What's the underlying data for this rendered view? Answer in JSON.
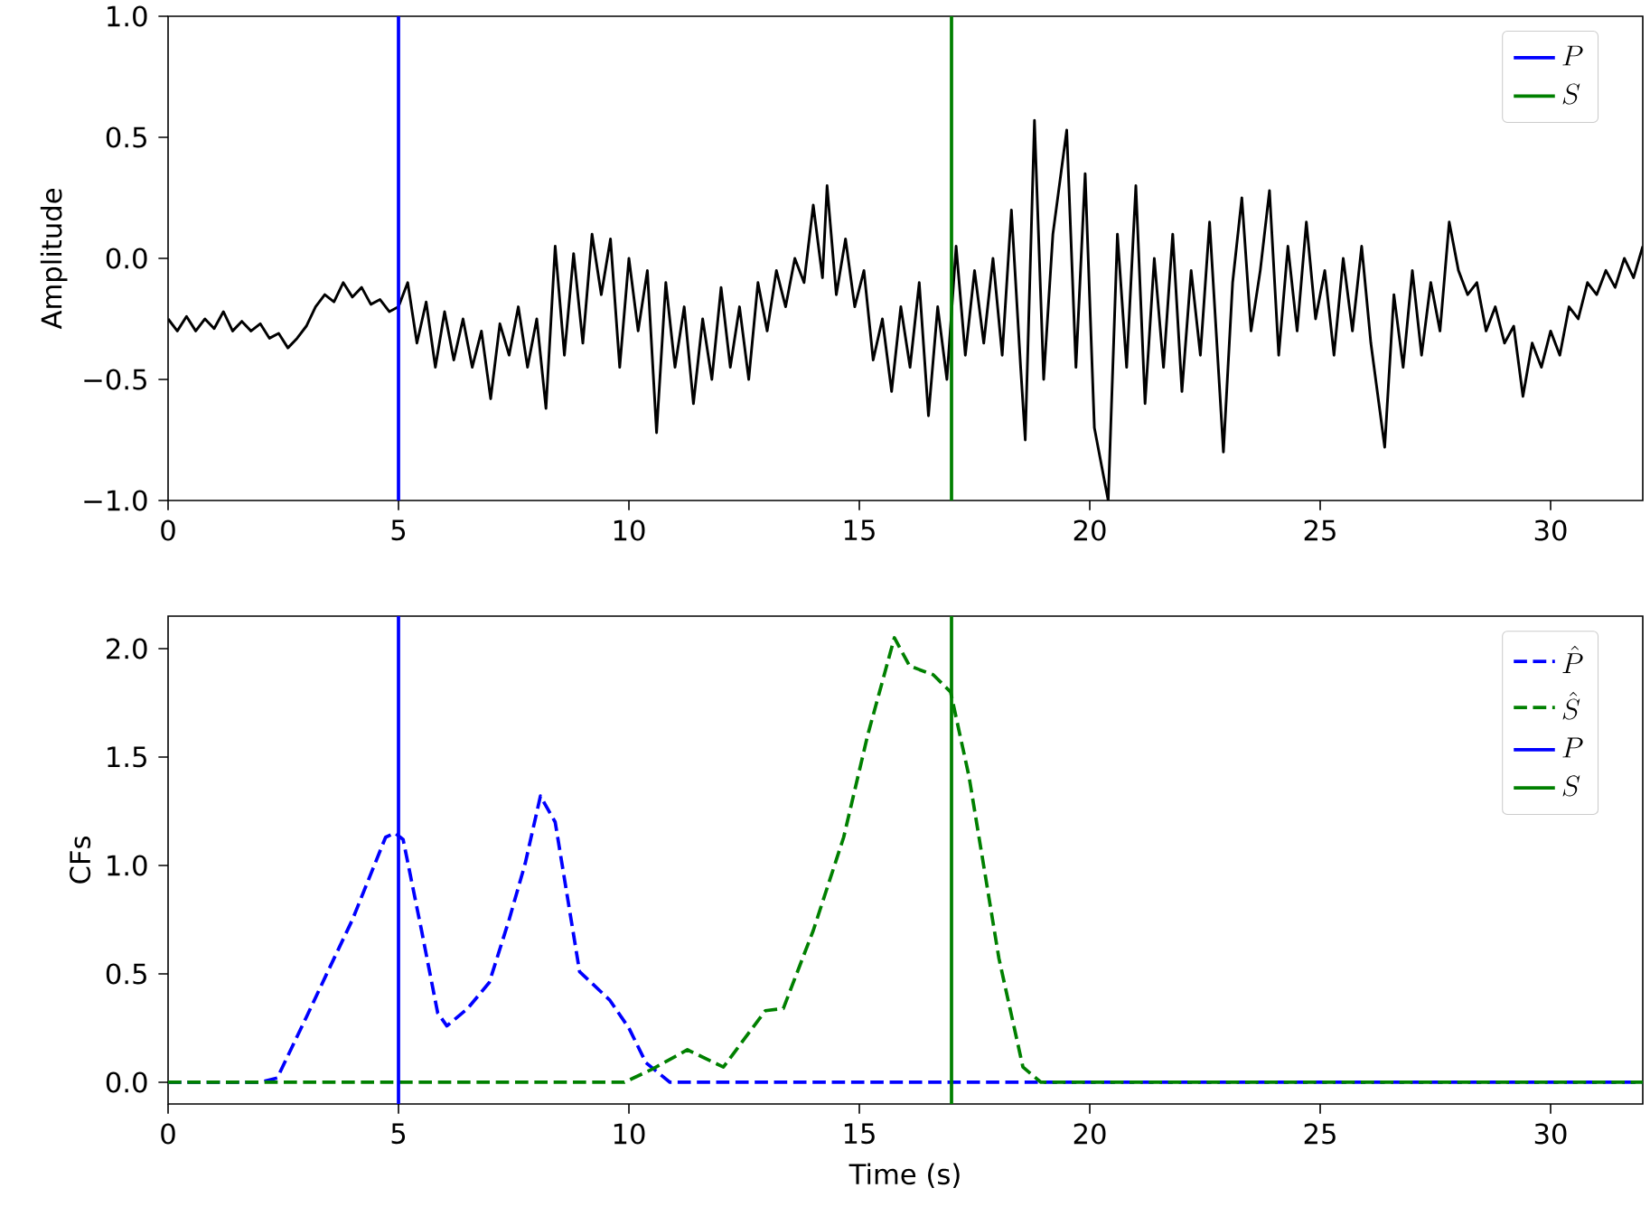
{
  "chart_data": [
    {
      "type": "line",
      "ylabel": "Amplitude",
      "xlim": [
        0,
        32
      ],
      "ylim": [
        -1,
        1
      ],
      "legend": "top right",
      "xticks": [
        0,
        5,
        10,
        15,
        20,
        25,
        30
      ],
      "yticks": [
        {
          "value": -1,
          "label": "−1.0"
        },
        {
          "value": -0.5,
          "label": "−0.5"
        },
        {
          "value": 0,
          "label": "0.0"
        },
        {
          "value": 0.5,
          "label": "0.5"
        },
        {
          "value": 1,
          "label": "1.0"
        }
      ],
      "series": [
        {
          "color": "#000000",
          "x": [
            0.0,
            0.2,
            0.4,
            0.6,
            0.8,
            1.0,
            1.2,
            1.4,
            1.6,
            1.8,
            2.0,
            2.2,
            2.4,
            2.6,
            2.8,
            3.0,
            3.2,
            3.4,
            3.6,
            3.8,
            4.0,
            4.2,
            4.4,
            4.6,
            4.8,
            5.0,
            5.2,
            5.4,
            5.6,
            5.8,
            6.0,
            6.2,
            6.4,
            6.6,
            6.8,
            7.0,
            7.2,
            7.4,
            7.6,
            7.8,
            8.0,
            8.2,
            8.4,
            8.6,
            8.8,
            9.0,
            9.2,
            9.4,
            9.6,
            9.8,
            10.0,
            10.2,
            10.4,
            10.6,
            10.8,
            11.0,
            11.2,
            11.4,
            11.6,
            11.8,
            12.0,
            12.2,
            12.4,
            12.6,
            12.8,
            13.0,
            13.2,
            13.4,
            13.6,
            13.8,
            14.0,
            14.2,
            14.3,
            14.5,
            14.7,
            14.9,
            15.1,
            15.3,
            15.5,
            15.7,
            15.9,
            16.1,
            16.3,
            16.5,
            16.7,
            16.9,
            17.1,
            17.3,
            17.5,
            17.7,
            17.9,
            18.1,
            18.3,
            18.5,
            18.6,
            18.8,
            19.0,
            19.2,
            19.5,
            19.7,
            19.9,
            20.1,
            20.4,
            20.6,
            20.8,
            21.0,
            21.2,
            21.4,
            21.6,
            21.8,
            22.0,
            22.2,
            22.4,
            22.6,
            22.9,
            23.1,
            23.3,
            23.5,
            23.7,
            23.9,
            24.1,
            24.3,
            24.5,
            24.7,
            24.9,
            25.1,
            25.3,
            25.5,
            25.7,
            25.9,
            26.1,
            26.4,
            26.6,
            26.8,
            27.0,
            27.2,
            27.4,
            27.6,
            27.8,
            28.0,
            28.2,
            28.4,
            28.6,
            28.8,
            29.0,
            29.2,
            29.4,
            29.6,
            29.8,
            30.0,
            30.2,
            30.4,
            30.6,
            30.8,
            31.0,
            31.2,
            31.4,
            31.6,
            31.8,
            32.0
          ],
          "values": [
            -0.25,
            -0.3,
            -0.24,
            -0.3,
            -0.25,
            -0.29,
            -0.22,
            -0.3,
            -0.26,
            -0.3,
            -0.27,
            -0.33,
            -0.31,
            -0.37,
            -0.33,
            -0.28,
            -0.2,
            -0.15,
            -0.18,
            -0.1,
            -0.16,
            -0.12,
            -0.19,
            -0.17,
            -0.22,
            -0.2,
            -0.1,
            -0.35,
            -0.18,
            -0.45,
            -0.22,
            -0.42,
            -0.25,
            -0.45,
            -0.3,
            -0.58,
            -0.27,
            -0.4,
            -0.2,
            -0.45,
            -0.25,
            -0.62,
            0.05,
            -0.4,
            0.02,
            -0.35,
            0.1,
            -0.15,
            0.08,
            -0.45,
            0.0,
            -0.3,
            -0.05,
            -0.72,
            -0.1,
            -0.45,
            -0.2,
            -0.6,
            -0.25,
            -0.5,
            -0.12,
            -0.45,
            -0.2,
            -0.5,
            -0.1,
            -0.3,
            -0.05,
            -0.2,
            0.0,
            -0.1,
            0.22,
            -0.08,
            0.3,
            -0.15,
            0.08,
            -0.2,
            -0.05,
            -0.42,
            -0.25,
            -0.55,
            -0.2,
            -0.45,
            -0.1,
            -0.65,
            -0.2,
            -0.5,
            0.05,
            -0.4,
            -0.05,
            -0.35,
            0.0,
            -0.4,
            0.2,
            -0.45,
            -0.75,
            0.57,
            -0.5,
            0.1,
            0.53,
            -0.45,
            0.35,
            -0.7,
            -1.0,
            0.1,
            -0.45,
            0.3,
            -0.6,
            0.0,
            -0.45,
            0.1,
            -0.55,
            -0.05,
            -0.4,
            0.15,
            -0.8,
            -0.1,
            0.25,
            -0.3,
            -0.05,
            0.28,
            -0.4,
            0.05,
            -0.3,
            0.15,
            -0.25,
            -0.05,
            -0.4,
            0.0,
            -0.3,
            0.05,
            -0.35,
            -0.78,
            -0.15,
            -0.45,
            -0.05,
            -0.4,
            -0.1,
            -0.3,
            0.15,
            -0.05,
            -0.15,
            -0.1,
            -0.3,
            -0.2,
            -0.35,
            -0.28,
            -0.57,
            -0.35,
            -0.45,
            -0.3,
            -0.4,
            -0.2,
            -0.25,
            -0.1,
            -0.15,
            -0.05,
            -0.12,
            0.0,
            -0.08,
            0.05
          ]
        },
        {
          "name": "P",
          "color": "#0000ff",
          "x": [
            5,
            5
          ],
          "values": [
            -1,
            1
          ]
        },
        {
          "name": "S",
          "color": "#008000",
          "x": [
            17,
            17
          ],
          "values": [
            -1,
            1
          ]
        }
      ]
    },
    {
      "type": "line",
      "xlabel": "Time (s)",
      "ylabel": "CFs",
      "xlim": [
        0,
        32
      ],
      "ylim": [
        -0.1,
        2.15
      ],
      "legend": "top right",
      "xticks": [
        0,
        5,
        10,
        15,
        20,
        25,
        30
      ],
      "yticks": [
        {
          "value": 0,
          "label": "0.0"
        },
        {
          "value": 0.5,
          "label": "0.5"
        },
        {
          "value": 1,
          "label": "1.0"
        },
        {
          "value": 1.5,
          "label": "1.5"
        },
        {
          "value": 2,
          "label": "2.0"
        }
      ],
      "series": [
        {
          "name": "\\hat{P}",
          "color": "#0000ff",
          "line_style": "dashed",
          "x": [
            0,
            2.0,
            2.37,
            3.0,
            3.42,
            4.0,
            4.72,
            4.92,
            5.1,
            5.5,
            5.85,
            6.05,
            6.5,
            6.97,
            7.4,
            7.75,
            8.08,
            8.4,
            8.93,
            9.58,
            10.0,
            10.37,
            10.89,
            12,
            32
          ],
          "values": [
            0,
            0,
            0.02,
            0.3,
            0.49,
            0.75,
            1.13,
            1.15,
            1.12,
            0.7,
            0.32,
            0.26,
            0.34,
            0.46,
            0.75,
            1.01,
            1.32,
            1.2,
            0.51,
            0.38,
            0.25,
            0.09,
            0,
            0,
            0
          ]
        },
        {
          "name": "\\hat{S}",
          "color": "#008000",
          "line_style": "dashed",
          "x": [
            0,
            9.9,
            10.5,
            11.27,
            12.05,
            12.96,
            13.35,
            14.0,
            14.66,
            15.18,
            15.76,
            16.09,
            16.6,
            16.98,
            17.38,
            18.03,
            18.55,
            18.94,
            32
          ],
          "values": [
            0,
            0,
            0.06,
            0.15,
            0.07,
            0.33,
            0.34,
            0.7,
            1.13,
            1.6,
            2.05,
            1.92,
            1.88,
            1.8,
            1.41,
            0.57,
            0.07,
            0,
            0
          ]
        },
        {
          "name": "P",
          "color": "#0000ff",
          "x": [
            5,
            5
          ],
          "values": [
            -0.1,
            2.15
          ]
        },
        {
          "name": "S",
          "color": "#008000",
          "x": [
            17,
            17
          ],
          "values": [
            -0.1,
            2.15
          ]
        }
      ]
    }
  ]
}
